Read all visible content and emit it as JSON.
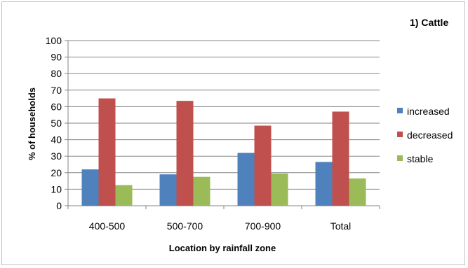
{
  "chart_data": {
    "type": "bar",
    "title": "1) Cattle",
    "xlabel": "Location by rainfall zone",
    "ylabel": "% of households",
    "categories": [
      "400-500",
      "500-700",
      "700-900",
      "Total"
    ],
    "series": [
      {
        "name": "increased",
        "color": "#4f81bd",
        "values": [
          22,
          19,
          32,
          26.5
        ]
      },
      {
        "name": "decreased",
        "color": "#c0504d",
        "values": [
          65,
          63.5,
          48.5,
          57
        ]
      },
      {
        "name": "stable",
        "color": "#9bbb59",
        "values": [
          12.5,
          17.5,
          19.5,
          16.5
        ]
      }
    ],
    "ylim": [
      0,
      100
    ],
    "yticks": [
      0,
      10,
      20,
      30,
      40,
      50,
      60,
      70,
      80,
      90,
      100
    ],
    "grid": true,
    "legend_position": "right"
  }
}
